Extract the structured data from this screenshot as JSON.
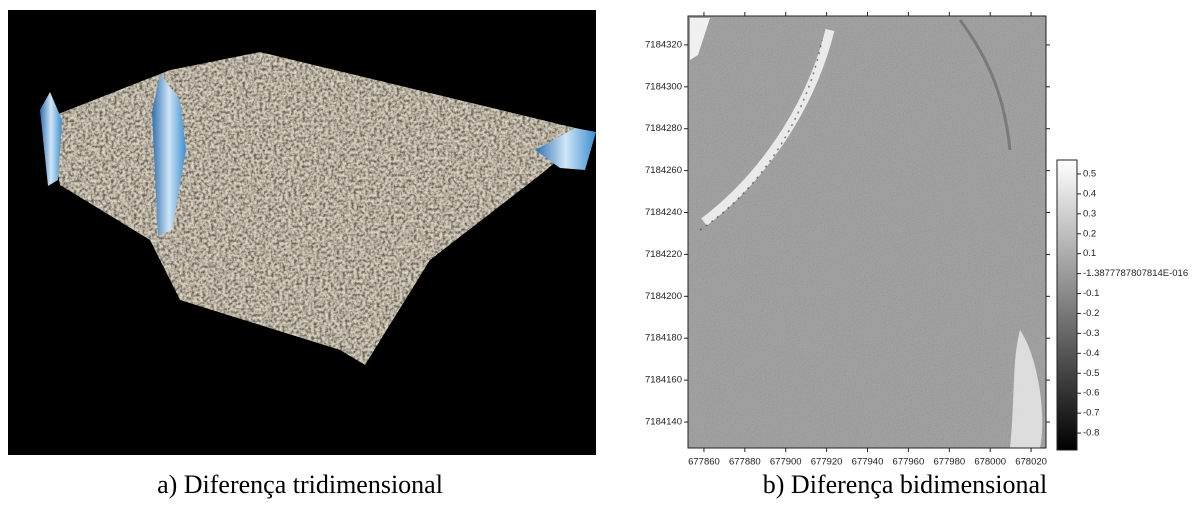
{
  "panels": [
    {
      "caption": "a) Diferença tridimensional"
    },
    {
      "caption": "b) Diferença bidimensional"
    }
  ],
  "chart_data": {
    "type": "raster",
    "xlim": [
      677852.2,
      678027.3
    ],
    "xticks": [
      677860,
      677880,
      677900,
      677920,
      677940,
      677960,
      677980,
      678000,
      678020
    ],
    "ylim": [
      7184127.6,
      7184333.8
    ],
    "yticks": [
      7184140,
      7184160,
      7184180,
      7184200,
      7184220,
      7184240,
      7184260,
      7184280,
      7184300,
      7184320
    ],
    "colormap": [
      "#000000",
      "#ffffff"
    ],
    "colorbar": {
      "lim": [
        -0.885,
        0.57
      ],
      "ticks": [
        0.5,
        0.4,
        0.3,
        0.2,
        0.1,
        {
          "value": -1.3877787807814e-16,
          "label": "-1.3877787807814E-016"
        },
        -0.1,
        -0.2,
        -0.3,
        -0.4,
        -0.5,
        -0.6,
        -0.7,
        -0.8
      ]
    }
  }
}
